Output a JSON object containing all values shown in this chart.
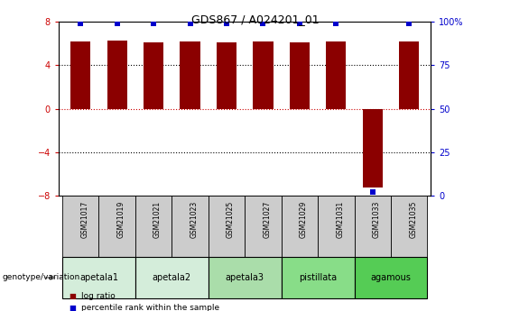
{
  "title": "GDS867 / A024201_01",
  "samples": [
    "GSM21017",
    "GSM21019",
    "GSM21021",
    "GSM21023",
    "GSM21025",
    "GSM21027",
    "GSM21029",
    "GSM21031",
    "GSM21033",
    "GSM21035"
  ],
  "log_ratios": [
    6.2,
    6.3,
    6.1,
    6.2,
    6.1,
    6.2,
    6.1,
    6.2,
    -7.2,
    6.2
  ],
  "percentile_ranks": [
    99,
    99,
    99,
    99,
    99,
    99,
    99,
    99,
    2,
    99
  ],
  "groups": [
    {
      "name": "apetala1",
      "start": 0,
      "end": 2,
      "color": "#d4edda"
    },
    {
      "name": "apetala2",
      "start": 2,
      "end": 4,
      "color": "#d4edda"
    },
    {
      "name": "apetala3",
      "start": 4,
      "end": 6,
      "color": "#aaddaa"
    },
    {
      "name": "pistillata",
      "start": 6,
      "end": 8,
      "color": "#88dd88"
    },
    {
      "name": "agamous",
      "start": 8,
      "end": 10,
      "color": "#55cc55"
    }
  ],
  "bar_color": "#8b0000",
  "blue_marker_color": "#0000cc",
  "ylim": [
    -8,
    8
  ],
  "y2lim": [
    0,
    100
  ],
  "yticks_left": [
    -8,
    -4,
    0,
    4,
    8
  ],
  "yticks_right": [
    0,
    25,
    50,
    75,
    100
  ],
  "ytick_labels_right": [
    "0",
    "25",
    "50",
    "75",
    "100%"
  ],
  "dotted_line_color": "#000000",
  "red_dotted_color": "#cc0000",
  "title_color": "#000000",
  "left_axis_color": "#cc0000",
  "right_axis_color": "#0000cc",
  "background_color": "#ffffff",
  "legend_log_ratio_color": "#8b0000",
  "legend_percentile_color": "#0000cc",
  "sample_bg_color": "#cccccc",
  "bar_width": 0.55,
  "marker_size": 5
}
